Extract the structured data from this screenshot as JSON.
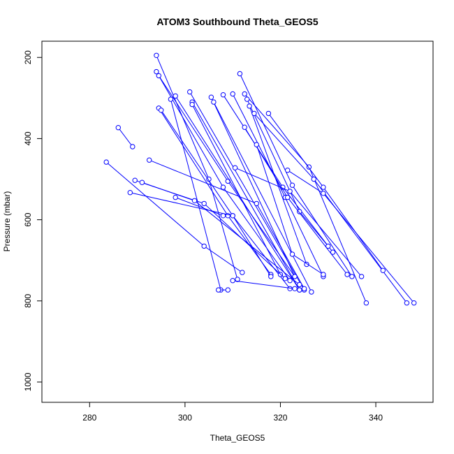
{
  "chart_data": {
    "type": "line",
    "title": "ATOM3 Southbound Theta_GEOS5",
    "xlabel": "Theta_GEOS5",
    "ylabel": "Pressure (mbar)",
    "xlim": [
      270,
      352
    ],
    "ylim": [
      1050,
      160
    ],
    "y_reversed": true,
    "x_ticks": [
      280,
      300,
      320,
      340
    ],
    "y_ticks": [
      200,
      400,
      600,
      800,
      1000
    ],
    "grid": false,
    "legend": "none",
    "color": "#0000ff",
    "series": [
      {
        "points": [
          [
            294,
            195
          ],
          [
            305,
            500
          ],
          [
            311,
            747
          ]
        ]
      },
      {
        "points": [
          [
            294,
            235
          ],
          [
            308,
            520
          ],
          [
            322,
            750
          ]
        ]
      },
      {
        "points": [
          [
            294.5,
            245
          ],
          [
            309,
            505
          ],
          [
            323,
            740
          ]
        ]
      },
      {
        "points": [
          [
            294.5,
            325
          ],
          [
            309,
            590
          ],
          [
            318,
            735
          ]
        ]
      },
      {
        "points": [
          [
            295,
            330
          ],
          [
            310,
            590
          ],
          [
            322,
            770
          ]
        ]
      },
      {
        "points": [
          [
            297,
            303
          ],
          [
            307.5,
            773
          ]
        ]
      },
      {
        "points": [
          [
            298,
            295
          ],
          [
            324,
            773
          ]
        ]
      },
      {
        "points": [
          [
            301,
            285
          ],
          [
            325,
            773
          ]
        ]
      },
      {
        "points": [
          [
            301.5,
            310
          ],
          [
            324,
            773
          ]
        ]
      },
      {
        "points": [
          [
            301.5,
            316
          ],
          [
            320,
            735
          ]
        ]
      },
      {
        "points": [
          [
            305.5,
            298
          ],
          [
            323,
            740
          ]
        ]
      },
      {
        "points": [
          [
            306,
            310
          ],
          [
            326.5,
            778
          ]
        ]
      },
      {
        "points": [
          [
            308,
            292
          ],
          [
            320.5,
            520
          ],
          [
            331,
            680
          ]
        ]
      },
      {
        "points": [
          [
            310,
            290
          ],
          [
            321,
            545
          ],
          [
            329,
            740
          ]
        ]
      },
      {
        "points": [
          [
            311.5,
            240
          ],
          [
            322.5,
            515
          ],
          [
            335,
            740
          ]
        ]
      },
      {
        "points": [
          [
            312.5,
            290
          ],
          [
            326,
            470
          ],
          [
            338,
            805
          ]
        ]
      },
      {
        "points": [
          [
            313,
            303
          ],
          [
            324,
            580
          ],
          [
            330,
            665
          ]
        ]
      },
      {
        "points": [
          [
            313.5,
            320
          ],
          [
            325.5,
            710
          ]
        ]
      },
      {
        "points": [
          [
            314.5,
            338
          ],
          [
            327,
            500
          ],
          [
            346.5,
            805
          ]
        ]
      },
      {
        "points": [
          [
            317.5,
            338
          ],
          [
            329,
            520
          ],
          [
            341.5,
            725
          ]
        ]
      },
      {
        "points": [
          [
            312.5,
            372
          ],
          [
            321.5,
            545
          ],
          [
            334,
            735
          ]
        ]
      },
      {
        "points": [
          [
            315,
            415
          ],
          [
            322.5,
            685
          ],
          [
            329,
            735
          ]
        ]
      },
      {
        "points": [
          [
            321.5,
            478
          ],
          [
            329,
            535
          ],
          [
            348,
            805
          ]
        ]
      },
      {
        "points": [
          [
            310.5,
            472
          ],
          [
            322,
            530
          ],
          [
            337,
            740
          ]
        ]
      },
      {
        "points": [
          [
            286,
            373
          ],
          [
            289,
            420
          ]
        ]
      },
      {
        "points": [
          [
            283.5,
            458
          ],
          [
            304,
            665
          ],
          [
            312,
            730
          ]
        ]
      },
      {
        "points": [
          [
            292.5,
            453
          ],
          [
            315,
            560
          ],
          [
            325,
            770
          ]
        ]
      },
      {
        "points": [
          [
            289.5,
            503
          ],
          [
            304,
            560
          ],
          [
            321,
            745
          ]
        ]
      },
      {
        "points": [
          [
            291,
            508
          ],
          [
            302,
            553
          ],
          [
            324,
            760
          ]
        ]
      },
      {
        "points": [
          [
            288.5,
            533
          ],
          [
            310,
            590
          ],
          [
            318,
            740
          ]
        ]
      },
      {
        "points": [
          [
            298,
            545
          ],
          [
            308,
            590
          ]
        ]
      },
      {
        "points": [
          [
            307,
            773
          ],
          [
            309,
            773
          ]
        ]
      },
      {
        "points": [
          [
            310,
            750
          ],
          [
            323,
            770
          ]
        ]
      }
    ]
  }
}
